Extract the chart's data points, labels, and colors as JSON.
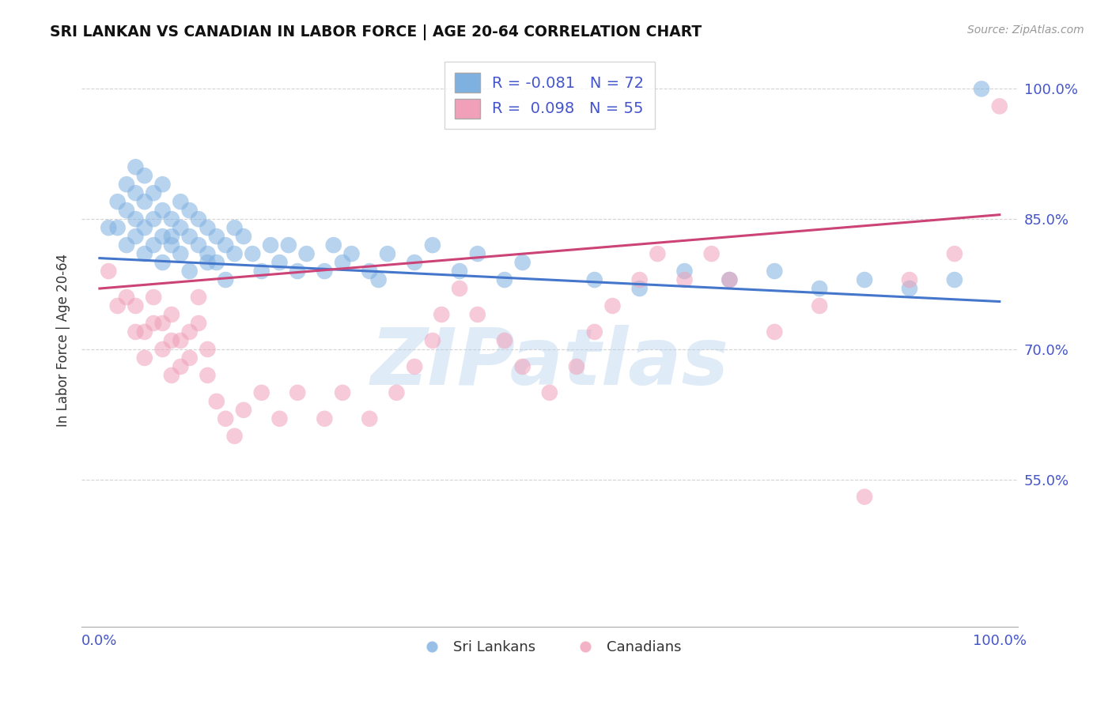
{
  "title": "SRI LANKAN VS CANADIAN IN LABOR FORCE | AGE 20-64 CORRELATION CHART",
  "source_text": "Source: ZipAtlas.com",
  "ylabel": "In Labor Force | Age 20-64",
  "xlim": [
    -0.02,
    1.02
  ],
  "ylim": [
    0.38,
    1.04
  ],
  "x_ticks": [
    0.0,
    1.0
  ],
  "x_tick_labels": [
    "0.0%",
    "100.0%"
  ],
  "y_ticks": [
    0.55,
    0.7,
    0.85,
    1.0
  ],
  "y_tick_labels": [
    "55.0%",
    "70.0%",
    "85.0%",
    "100.0%"
  ],
  "grid_color": "#c8c8c8",
  "background_color": "#ffffff",
  "sri_lankan_color": "#7eb0e0",
  "canadian_color": "#f0a0b8",
  "sri_lankan_R": -0.081,
  "sri_lankan_N": 72,
  "canadian_R": 0.098,
  "canadian_N": 55,
  "trend_blue": "#4477cc",
  "trend_pink": "#cc4477",
  "legend_color": "#4455cc",
  "legend_label1": "Sri Lankans",
  "legend_label2": "Canadians",
  "watermark_text": "ZIPatlas",
  "sl_line_x0": 0.0,
  "sl_line_y0": 0.805,
  "sl_line_x1": 1.0,
  "sl_line_y1": 0.755,
  "ca_line_x0": 0.0,
  "ca_line_y0": 0.77,
  "ca_line_x1": 1.0,
  "ca_line_y1": 0.855,
  "sl_points": [
    [
      0.01,
      0.84
    ],
    [
      0.02,
      0.84
    ],
    [
      0.02,
      0.87
    ],
    [
      0.03,
      0.82
    ],
    [
      0.03,
      0.86
    ],
    [
      0.03,
      0.89
    ],
    [
      0.04,
      0.83
    ],
    [
      0.04,
      0.85
    ],
    [
      0.04,
      0.88
    ],
    [
      0.04,
      0.91
    ],
    [
      0.05,
      0.81
    ],
    [
      0.05,
      0.84
    ],
    [
      0.05,
      0.87
    ],
    [
      0.05,
      0.9
    ],
    [
      0.06,
      0.82
    ],
    [
      0.06,
      0.85
    ],
    [
      0.06,
      0.88
    ],
    [
      0.07,
      0.8
    ],
    [
      0.07,
      0.83
    ],
    [
      0.07,
      0.86
    ],
    [
      0.07,
      0.89
    ],
    [
      0.08,
      0.82
    ],
    [
      0.08,
      0.85
    ],
    [
      0.08,
      0.83
    ],
    [
      0.09,
      0.81
    ],
    [
      0.09,
      0.84
    ],
    [
      0.09,
      0.87
    ],
    [
      0.1,
      0.83
    ],
    [
      0.1,
      0.86
    ],
    [
      0.1,
      0.79
    ],
    [
      0.11,
      0.82
    ],
    [
      0.11,
      0.85
    ],
    [
      0.12,
      0.8
    ],
    [
      0.12,
      0.84
    ],
    [
      0.12,
      0.81
    ],
    [
      0.13,
      0.83
    ],
    [
      0.13,
      0.8
    ],
    [
      0.14,
      0.78
    ],
    [
      0.14,
      0.82
    ],
    [
      0.15,
      0.81
    ],
    [
      0.15,
      0.84
    ],
    [
      0.16,
      0.83
    ],
    [
      0.17,
      0.81
    ],
    [
      0.18,
      0.79
    ],
    [
      0.19,
      0.82
    ],
    [
      0.2,
      0.8
    ],
    [
      0.21,
      0.82
    ],
    [
      0.22,
      0.79
    ],
    [
      0.23,
      0.81
    ],
    [
      0.25,
      0.79
    ],
    [
      0.26,
      0.82
    ],
    [
      0.27,
      0.8
    ],
    [
      0.28,
      0.81
    ],
    [
      0.3,
      0.79
    ],
    [
      0.31,
      0.78
    ],
    [
      0.32,
      0.81
    ],
    [
      0.35,
      0.8
    ],
    [
      0.37,
      0.82
    ],
    [
      0.4,
      0.79
    ],
    [
      0.42,
      0.81
    ],
    [
      0.45,
      0.78
    ],
    [
      0.47,
      0.8
    ],
    [
      0.55,
      0.78
    ],
    [
      0.6,
      0.77
    ],
    [
      0.65,
      0.79
    ],
    [
      0.7,
      0.78
    ],
    [
      0.75,
      0.79
    ],
    [
      0.8,
      0.77
    ],
    [
      0.85,
      0.78
    ],
    [
      0.9,
      0.77
    ],
    [
      0.95,
      0.78
    ],
    [
      0.98,
      1.0
    ]
  ],
  "ca_points": [
    [
      0.01,
      0.79
    ],
    [
      0.02,
      0.75
    ],
    [
      0.03,
      0.76
    ],
    [
      0.04,
      0.72
    ],
    [
      0.04,
      0.75
    ],
    [
      0.05,
      0.72
    ],
    [
      0.05,
      0.69
    ],
    [
      0.06,
      0.73
    ],
    [
      0.06,
      0.76
    ],
    [
      0.07,
      0.7
    ],
    [
      0.07,
      0.73
    ],
    [
      0.08,
      0.71
    ],
    [
      0.08,
      0.74
    ],
    [
      0.08,
      0.67
    ],
    [
      0.09,
      0.71
    ],
    [
      0.09,
      0.68
    ],
    [
      0.1,
      0.72
    ],
    [
      0.1,
      0.69
    ],
    [
      0.11,
      0.73
    ],
    [
      0.11,
      0.76
    ],
    [
      0.12,
      0.7
    ],
    [
      0.12,
      0.67
    ],
    [
      0.13,
      0.64
    ],
    [
      0.14,
      0.62
    ],
    [
      0.15,
      0.6
    ],
    [
      0.16,
      0.63
    ],
    [
      0.18,
      0.65
    ],
    [
      0.2,
      0.62
    ],
    [
      0.22,
      0.65
    ],
    [
      0.25,
      0.62
    ],
    [
      0.27,
      0.65
    ],
    [
      0.3,
      0.62
    ],
    [
      0.33,
      0.65
    ],
    [
      0.35,
      0.68
    ],
    [
      0.37,
      0.71
    ],
    [
      0.38,
      0.74
    ],
    [
      0.4,
      0.77
    ],
    [
      0.42,
      0.74
    ],
    [
      0.45,
      0.71
    ],
    [
      0.47,
      0.68
    ],
    [
      0.5,
      0.65
    ],
    [
      0.53,
      0.68
    ],
    [
      0.55,
      0.72
    ],
    [
      0.57,
      0.75
    ],
    [
      0.6,
      0.78
    ],
    [
      0.62,
      0.81
    ],
    [
      0.65,
      0.78
    ],
    [
      0.68,
      0.81
    ],
    [
      0.7,
      0.78
    ],
    [
      0.75,
      0.72
    ],
    [
      0.8,
      0.75
    ],
    [
      0.85,
      0.53
    ],
    [
      0.9,
      0.78
    ],
    [
      0.95,
      0.81
    ],
    [
      1.0,
      0.98
    ]
  ]
}
